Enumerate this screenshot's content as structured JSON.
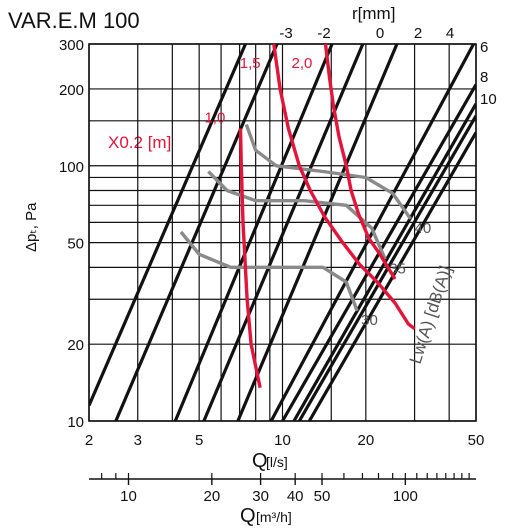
{
  "chart_data": {
    "type": "line",
    "title": "VAR.E.M 100",
    "x_scale": "log",
    "y_scale": "log",
    "xlim": [
      2,
      50
    ],
    "ylim": [
      10,
      300
    ],
    "xlabel": "Q",
    "xlabel_unit": "[l/s]",
    "ylabel": "Δpₜ, Pa",
    "x2label": "Q",
    "x2label_unit": "[m³/h]",
    "toplabel": "r[mm]",
    "x_ticks": [
      "2",
      "3",
      "5",
      "10",
      "20",
      "50"
    ],
    "x_tick_values": [
      2,
      3,
      5,
      10,
      20,
      50
    ],
    "y_ticks": [
      "10",
      "20",
      "50",
      "100",
      "200",
      "300"
    ],
    "y_tick_values": [
      10,
      20,
      50,
      100,
      200,
      300
    ],
    "x2_ticks": [
      "10",
      "20",
      "30",
      "40",
      "50",
      "100"
    ],
    "x2_tick_values": [
      10,
      20,
      30,
      40,
      50,
      100
    ],
    "top_ticks": [
      "-3",
      "-2",
      "0",
      "2",
      "4"
    ],
    "top_tick_values": [
      -3,
      -2,
      0,
      2,
      4
    ],
    "right_ticks": [
      "6",
      "8",
      "10"
    ],
    "right_tick_values": [
      6,
      8,
      10
    ],
    "y_minor_grid": [
      30,
      40,
      60,
      70,
      80,
      90,
      150
    ],
    "x_minor_grid": [
      4,
      6,
      7,
      8,
      9,
      15,
      30,
      40
    ],
    "x0_2_label": "X0.2 [m]",
    "lw_label": "Lw(A) [dB(A)]",
    "r_lines": [
      {
        "label": "-3",
        "points": [
          [
            2,
            11.5
          ],
          [
            7.35,
            300
          ]
        ]
      },
      {
        "label": "-2",
        "points": [
          [
            2.5,
            10
          ],
          [
            9.55,
            300
          ]
        ]
      },
      {
        "label": "0",
        "points": [
          [
            4.1,
            10
          ],
          [
            15.1,
            300
          ]
        ]
      },
      {
        "label": "2",
        "points": [
          [
            5.2,
            10
          ],
          [
            19.5,
            300
          ]
        ]
      },
      {
        "label": "4",
        "points": [
          [
            6.9,
            10
          ],
          [
            25.9,
            300
          ]
        ]
      },
      {
        "label": "6",
        "points": [
          [
            9.1,
            10
          ],
          [
            49,
            300
          ]
        ]
      },
      {
        "label": "8",
        "points": [
          [
            10,
            10
          ],
          [
            50,
            208
          ]
        ]
      },
      {
        "label": "10",
        "points": [
          [
            11,
            10
          ],
          [
            50,
            175
          ]
        ]
      },
      {
        "label": "",
        "points": [
          [
            11.5,
            10
          ],
          [
            50,
            157
          ]
        ]
      },
      {
        "label": "",
        "points": [
          [
            12.5,
            10
          ],
          [
            50,
            135
          ]
        ]
      }
    ],
    "x0_2_curves": [
      {
        "label": "1,0",
        "points": [
          [
            7.05,
            140
          ],
          [
            7.1,
            100
          ],
          [
            7.2,
            60
          ],
          [
            7.45,
            30
          ],
          [
            7.7,
            20
          ],
          [
            8.3,
            13.5
          ]
        ]
      },
      {
        "label": "1,5",
        "points": [
          [
            9.3,
            300
          ],
          [
            9.8,
            200
          ],
          [
            10.5,
            140
          ],
          [
            11.5,
            100
          ],
          [
            12.6,
            80
          ],
          [
            14.2,
            63
          ],
          [
            16.5,
            50
          ],
          [
            19,
            41
          ],
          [
            22,
            35
          ],
          [
            25.5,
            29
          ],
          [
            28.5,
            24
          ],
          [
            30,
            23
          ]
        ]
      },
      {
        "label": "2,0",
        "points": [
          [
            14.3,
            300
          ],
          [
            14.8,
            220
          ],
          [
            15.3,
            170
          ],
          [
            16,
            130
          ],
          [
            17,
            100
          ],
          [
            17.7,
            80
          ],
          [
            18.8,
            65
          ],
          [
            20.5,
            52
          ],
          [
            22.5,
            45
          ],
          [
            24,
            40
          ],
          [
            25.5,
            36
          ]
        ]
      }
    ],
    "lw_curves": [
      {
        "label": "30",
        "points": [
          [
            4.3,
            55
          ],
          [
            5,
            45
          ],
          [
            6.5,
            40
          ],
          [
            10,
            40
          ],
          [
            14,
            40
          ],
          [
            17,
            35
          ],
          [
            18.6,
            27
          ]
        ]
      },
      {
        "label": "35",
        "points": [
          [
            5.4,
            95
          ],
          [
            6.3,
            80
          ],
          [
            8,
            73
          ],
          [
            12,
            73
          ],
          [
            17,
            70
          ],
          [
            21,
            57
          ],
          [
            23.5,
            43
          ]
        ]
      },
      {
        "label": "40",
        "points": [
          [
            7.4,
            145
          ],
          [
            8,
            115
          ],
          [
            9.5,
            100
          ],
          [
            14,
            95
          ],
          [
            20,
            90
          ],
          [
            25,
            78
          ],
          [
            29,
            62
          ]
        ]
      }
    ],
    "grid": true
  }
}
